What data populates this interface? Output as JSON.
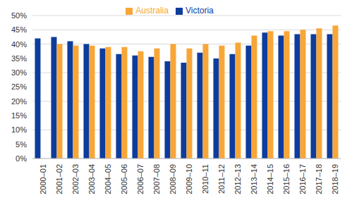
{
  "chart_data": {
    "type": "bar",
    "categories": [
      "2000–01",
      "2001–02",
      "2002–03",
      "2003–04",
      "2004–05",
      "2005–06",
      "2006–07",
      "2007–08",
      "2008–09",
      "2009–10",
      "2010–11",
      "2011–12",
      "2012–13",
      "2013–14",
      "2014–15",
      "2015–16",
      "2016–17",
      "2017–18",
      "2018–19"
    ],
    "series": [
      {
        "name": "Victoria",
        "color": "#0e3c9c",
        "values": [
          42,
          42.5,
          41,
          40,
          38.5,
          36.5,
          36,
          35.5,
          34,
          33.5,
          37,
          35,
          36.5,
          39.5,
          44,
          43,
          43.5,
          43.5,
          43.5
        ]
      },
      {
        "name": "Australia",
        "color": "#f8a637",
        "values": [
          null,
          40,
          39.5,
          39.5,
          39,
          39,
          37.5,
          38.5,
          40,
          38.5,
          40,
          39.5,
          40.5,
          43,
          44.5,
          44.5,
          45,
          45.5,
          46.5
        ]
      }
    ],
    "ylim": [
      0,
      50
    ],
    "yticks": [
      {
        "value": 0,
        "label": "0%"
      },
      {
        "value": 5,
        "label": "5%"
      },
      {
        "value": 10,
        "label": "10%"
      },
      {
        "value": 15,
        "label": "15%"
      },
      {
        "value": 20,
        "label": "20%"
      },
      {
        "value": 25,
        "label": "25%"
      },
      {
        "value": 30,
        "label": "30%"
      },
      {
        "value": 35,
        "label": "35%"
      },
      {
        "value": 40,
        "label": "40%"
      },
      {
        "value": 45,
        "label": "45%"
      },
      {
        "value": 50,
        "label": "50%"
      }
    ],
    "grid": true,
    "legend": "top"
  }
}
